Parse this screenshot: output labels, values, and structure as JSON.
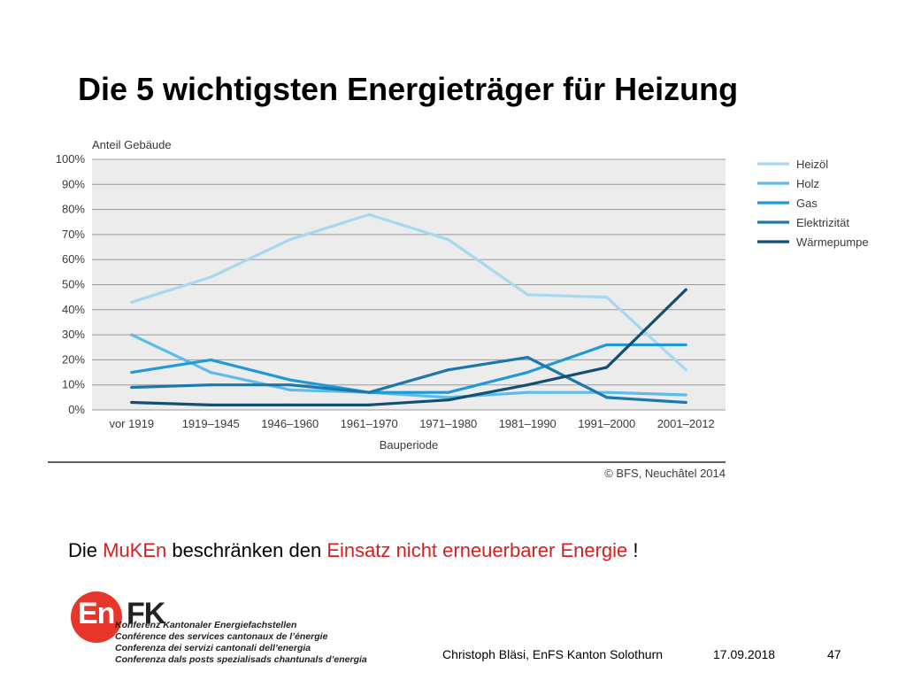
{
  "slide": {
    "title": "Die 5 wichtigsten Energieträger für Heizung",
    "statement": {
      "part1": "Die ",
      "part2": "MuKEn",
      "part3": " beschränken den ",
      "part4": "Einsatz nicht erneuerbarer Energie",
      "part5": " !"
    },
    "highlight_color": "#d42020"
  },
  "logo": {
    "mark_en": "En",
    "mark_fk": "FK",
    "lines": [
      "Konferenz Kantonaler Energiefachstellen",
      "Conférence des services cantonaux de l’énergie",
      "Conferenza dei servizi cantonali dell’energia",
      "Conferenza dals posts spezialisads chantunals d’energia"
    ],
    "brand_color": "#e8362a"
  },
  "footer": {
    "author": "Christoph Bläsi, EnFS Kanton Solothurn",
    "date": "17.09.2018",
    "page": "47"
  },
  "chart_data": {
    "type": "line",
    "ylabel": "Anteil Gebäude",
    "xlabel": "Bauperiode",
    "source": "© BFS, Neuchâtel 2014",
    "categories": [
      "vor 1919",
      "1919–1945",
      "1946–1960",
      "1961–1970",
      "1971–1980",
      "1981–1990",
      "1991–2000",
      "2001–2012"
    ],
    "ylim": [
      0,
      100
    ],
    "yticks": [
      0,
      10,
      20,
      30,
      40,
      50,
      60,
      70,
      80,
      90,
      100
    ],
    "ytick_labels": [
      "0%",
      "10%",
      "20%",
      "30%",
      "40%",
      "50%",
      "60%",
      "70%",
      "80%",
      "90%",
      "100%"
    ],
    "grid": true,
    "legend_position": "right",
    "plot_background": "#ececec",
    "series": [
      {
        "name": "Heizöl",
        "color": "#a8d8f0",
        "values": [
          43,
          53,
          68,
          78,
          68,
          46,
          45,
          16
        ]
      },
      {
        "name": "Holz",
        "color": "#5bbde8",
        "values": [
          30,
          15,
          8,
          7,
          5,
          7,
          7,
          6
        ]
      },
      {
        "name": "Gas",
        "color": "#1f9ad6",
        "values": [
          15,
          20,
          12,
          7,
          7,
          15,
          26,
          26
        ]
      },
      {
        "name": "Elektrizität",
        "color": "#1a78ad",
        "values": [
          9,
          10,
          10,
          7,
          16,
          21,
          5,
          3
        ]
      },
      {
        "name": "Wärmepumpe",
        "color": "#124f73",
        "values": [
          3,
          2,
          2,
          2,
          4,
          10,
          17,
          48
        ]
      }
    ]
  }
}
